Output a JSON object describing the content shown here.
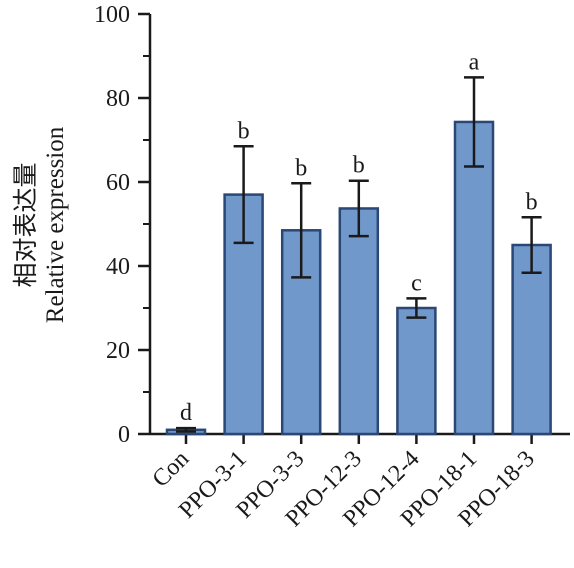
{
  "chart_data": {
    "type": "bar",
    "categories": [
      "Con",
      "PPO-3-1",
      "PPO-3-3",
      "PPO-12-3",
      "PPO-12-4",
      "PPO-18-1",
      "PPO-18-3"
    ],
    "series": [
      {
        "values": [
          1,
          57,
          48.5,
          53.7,
          30,
          74.3,
          45
        ],
        "error": [
          0.4,
          11.5,
          11.2,
          6.6,
          2.3,
          10.6,
          6.6
        ],
        "significance": [
          "d",
          "b",
          "b",
          "b",
          "c",
          "a",
          "b"
        ]
      }
    ],
    "ylabel_cn": "相对表达量",
    "ylabel": "Relative expression",
    "ylim": [
      0,
      100
    ],
    "yticks": [
      0,
      20,
      40,
      60,
      80,
      100
    ],
    "grid": false,
    "colors": {
      "bar_fill": "#7198CB",
      "bar_stroke": "#2B4775",
      "axis": "#1a1a1a",
      "error_bar": "#1a1a1a"
    }
  }
}
